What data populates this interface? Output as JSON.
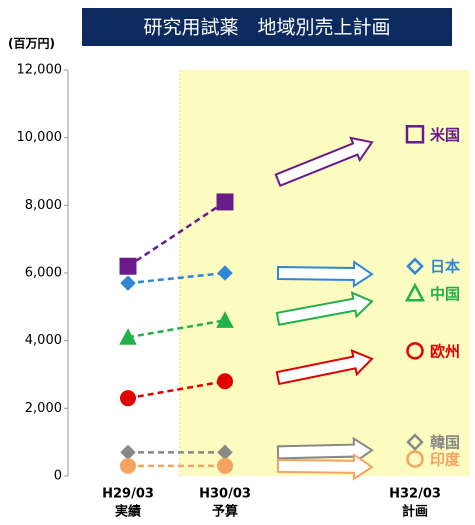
{
  "chart_data": {
    "type": "line",
    "title": "研究用試薬　地域別売上計画",
    "ylabel": "(百万円)",
    "categories": [
      "H29/03",
      "H30/03",
      "H32/03"
    ],
    "sublabels": [
      "実績",
      "予算",
      "計画"
    ],
    "ylim": [
      0,
      12000
    ],
    "yticks": [
      0,
      {
        "value": 2000,
        "label": "2,000"
      },
      {
        "value": 4000,
        "label": "4,000"
      },
      {
        "value": 6000,
        "label": "6,000"
      },
      {
        "value": 8000,
        "label": "8,000"
      },
      {
        "value": 10000,
        "label": "10,000"
      },
      {
        "value": 12000,
        "label": "12,000"
      }
    ],
    "series": [
      {
        "name": "米国",
        "color": "#6a1b8a",
        "marker": "square",
        "values": [
          6200,
          8100,
          10100
        ]
      },
      {
        "name": "日本",
        "color": "#2e86d6",
        "marker": "diamond",
        "values": [
          5700,
          6000,
          6200
        ]
      },
      {
        "name": "中国",
        "color": "#22b04b",
        "marker": "triangle",
        "values": [
          4100,
          4600,
          5400
        ]
      },
      {
        "name": "欧州",
        "color": "#e00000",
        "marker": "circle",
        "values": [
          2300,
          2800,
          3700
        ]
      },
      {
        "name": "韓国",
        "color": "#888888",
        "marker": "diamond",
        "values": [
          700,
          700,
          1000
        ]
      },
      {
        "name": "印度",
        "color": "#f4a460",
        "marker": "circle",
        "values": [
          300,
          300,
          500
        ]
      }
    ]
  }
}
